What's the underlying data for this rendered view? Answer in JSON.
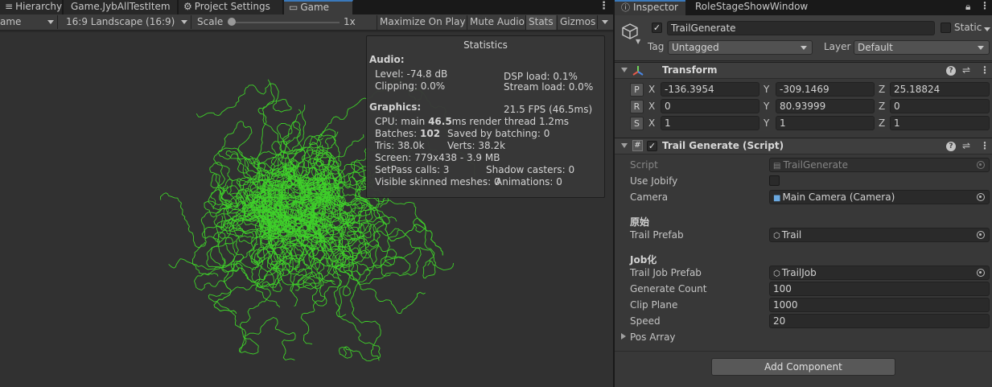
{
  "left_tabs": [
    {
      "label": "Hierarchy",
      "icon": "list-icon"
    },
    {
      "label": "Game.JybAllTestItem",
      "icon": "game-icon"
    },
    {
      "label": "Project Settings",
      "icon": "gear-icon"
    },
    {
      "label": "Game",
      "icon": "gamepad-icon"
    }
  ],
  "toolbar": {
    "display_dropdown": "ame",
    "aspect_dropdown": "16:9 Landscape (16:9)",
    "scale_label": "Scale",
    "scale_value": "1x",
    "maximize_on_play": "Maximize On Play",
    "mute_audio": "Mute Audio",
    "stats": "Stats",
    "gizmos": "Gizmos"
  },
  "statistics": {
    "title": "Statistics",
    "audio_header": "Audio:",
    "level": "Level: -74.8 dB",
    "clipping": "Clipping: 0.0%",
    "dsp_load": "DSP load: 0.1%",
    "stream_load": "Stream load: 0.0%",
    "graphics_header": "Graphics:",
    "fps": "21.5 FPS (46.5ms)",
    "cpu_prefix": "CPU: main ",
    "cpu_main": "46.5",
    "cpu_suffix": "ms  render thread 1.2ms",
    "batches_prefix": "Batches: ",
    "batches": "102",
    "saved_by_batching": "Saved by batching: 0",
    "tris": "Tris: 38.0k",
    "verts": "Verts: 38.2k",
    "screen": "Screen: 779x438 - 3.9 MB",
    "setpass": "SetPass calls: 3",
    "shadow_casters": "Shadow casters: 0",
    "skinned_meshes": "Visible skinned meshes: 0",
    "animations": "Animations: 0"
  },
  "right_tabs": [
    {
      "label": "Inspector",
      "icon": "info-icon"
    },
    {
      "label": "RoleStageShowWindow",
      "icon": ""
    }
  ],
  "object": {
    "active": true,
    "name": "TrailGenerate",
    "static_label": "Static",
    "tag_label": "Tag",
    "tag_value": "Untagged",
    "layer_label": "Layer",
    "layer_value": "Default"
  },
  "transform": {
    "title": "Transform",
    "rows": [
      {
        "btn": "P",
        "x": "-136.3954",
        "y": "-309.1469",
        "z": "25.18824"
      },
      {
        "btn": "R",
        "x": "0",
        "y": "80.93999",
        "z": "0"
      },
      {
        "btn": "S",
        "x": "1",
        "y": "1",
        "z": "1"
      }
    ],
    "axis_x": "X",
    "axis_y": "Y",
    "axis_z": "Z"
  },
  "script_component": {
    "title": "Trail Generate (Script)",
    "enabled": true,
    "script_label": "Script",
    "script_value": "TrailGenerate",
    "use_jobify_label": "Use Jobify",
    "use_jobify": false,
    "camera_label": "Camera",
    "camera_value": "Main Camera (Camera)",
    "section_original": "原始",
    "trail_prefab_label": "Trail Prefab",
    "trail_prefab_value": "Trail",
    "section_job": "Job化",
    "trail_job_prefab_label": "Trail Job Prefab",
    "trail_job_prefab_value": "TrailJob",
    "generate_count_label": "Generate Count",
    "generate_count": "100",
    "clip_plane_label": "Clip Plane",
    "clip_plane": "1000",
    "speed_label": "Speed",
    "speed": "20",
    "pos_array_label": "Pos Array"
  },
  "add_component": "Add Component",
  "colors": {
    "trail": "#3fd12a",
    "accent": "#3a79bb",
    "panel": "#383838"
  }
}
